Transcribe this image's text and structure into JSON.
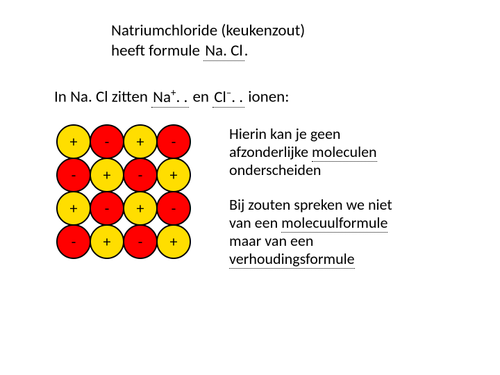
{
  "title": {
    "line1": "Natriumchloride (keukenzout)",
    "line2_prefix": "heeft formule ",
    "formula": "Na. Cl",
    "period": "."
  },
  "ionline": {
    "prefix": "In Na. Cl zitten ",
    "ion1_base": "Na",
    "ion1_sup": "+",
    "ion1_after": ". .",
    "mid": " en ",
    "ion2_base": "Cl",
    "ion2_sup": "–",
    "ion2_after": ". .",
    "suffix": " ionen:"
  },
  "lattice": {
    "rows": 4,
    "cols": 4,
    "radius": 24,
    "stroke_width": 2,
    "step": 48,
    "color_plus": "#ffde00",
    "color_minus": "#ff0000",
    "stroke": "#000000",
    "label_plus": "+",
    "label_minus": "-",
    "label_fontsize": 22,
    "pattern": [
      [
        "+",
        "-",
        "+",
        "-"
      ],
      [
        "-",
        "+",
        "-",
        "+"
      ],
      [
        "+",
        "-",
        "+",
        "-"
      ],
      [
        "-",
        "+",
        "-",
        "+"
      ]
    ]
  },
  "right": {
    "p1_a": "Hierin kan je geen",
    "p1_b_pre": "afzonderlijke ",
    "p1_b_dotted": "moleculen",
    "p1_c": "onderscheiden",
    "p2_a": "Bij zouten spreken we niet",
    "p2_b_pre": "van een ",
    "p2_b_dotted": "molecuulformule",
    "p2_c": "maar van een",
    "p2_d_dotted": "verhoudingsformule"
  },
  "style": {
    "background": "#ffffff",
    "text_color": "#000000",
    "title_fontsize": 23,
    "body_fontsize": 22
  }
}
